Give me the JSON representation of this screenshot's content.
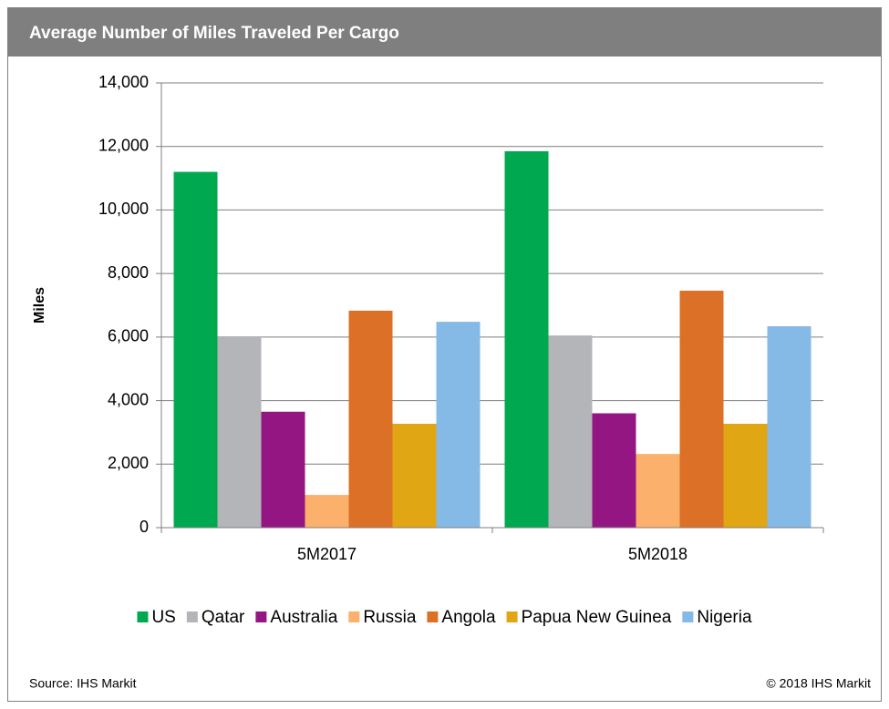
{
  "chart_data": {
    "type": "bar",
    "title": "Average Number of Miles Traveled Per Cargo",
    "ylabel": "Miles",
    "categories": [
      "5M2017",
      "5M2018"
    ],
    "series": [
      {
        "name": "US",
        "color": "#00a94f",
        "values": [
          11200,
          11850
        ]
      },
      {
        "name": "Qatar",
        "color": "#b3b5b8",
        "values": [
          6000,
          6050
        ]
      },
      {
        "name": "Australia",
        "color": "#941683",
        "values": [
          3650,
          3600
        ]
      },
      {
        "name": "Russia",
        "color": "#fbb16b",
        "values": [
          1030,
          2320
        ]
      },
      {
        "name": "Angola",
        "color": "#dc7026",
        "values": [
          6830,
          7460
        ]
      },
      {
        "name": "Papua New Guinea",
        "color": "#e0a614",
        "values": [
          3270,
          3270
        ]
      },
      {
        "name": "Nigeria",
        "color": "#85b9e6",
        "values": [
          6480,
          6340
        ]
      }
    ],
    "ylim": [
      0,
      14000
    ],
    "yticks": [
      0,
      {
        "value": 2000,
        "label": "2,000"
      },
      {
        "value": 4000,
        "label": "4,000"
      },
      {
        "value": 6000,
        "label": "6,000"
      },
      {
        "value": 8000,
        "label": "8,000"
      },
      {
        "value": 10000,
        "label": "10,000"
      },
      {
        "value": 12000,
        "label": "12,000"
      },
      {
        "value": 14000,
        "label": "14,000"
      }
    ],
    "grid": true,
    "legend": "bottom",
    "source": "Source: IHS Markit",
    "copyright": "© 2018 IHS Markit"
  }
}
